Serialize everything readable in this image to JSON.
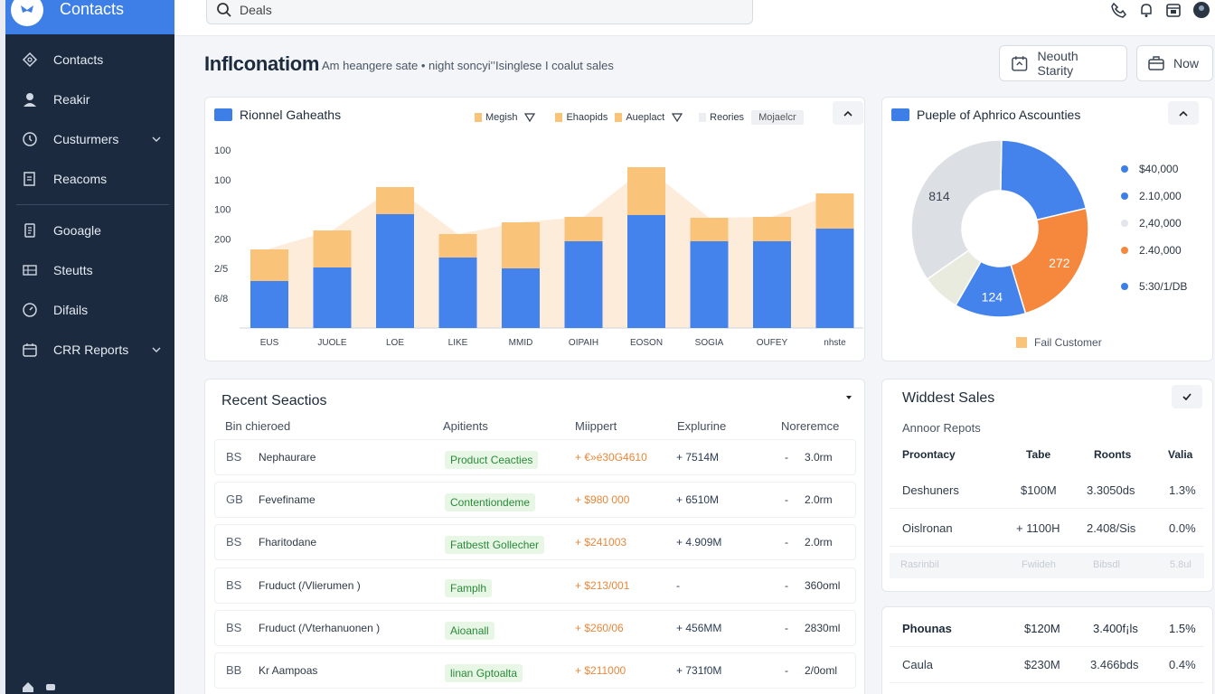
{
  "app": {
    "title": "Contacts"
  },
  "sidebar": {
    "items": [
      {
        "label": "Contacts",
        "icon": "contacts-icon"
      },
      {
        "label": "Reakir",
        "icon": "person-icon"
      },
      {
        "label": "Custurmers",
        "icon": "clock-icon",
        "expandable": true
      },
      {
        "label": "Reacoms",
        "icon": "document-icon"
      },
      {
        "label": "Gooagle",
        "icon": "file-icon"
      },
      {
        "label": "Steutts",
        "icon": "grid-icon"
      },
      {
        "label": "Difails",
        "icon": "gauge-icon"
      },
      {
        "label": "CRR Reports",
        "icon": "calendar-icon",
        "expandable": true
      }
    ]
  },
  "search": {
    "value": "Deals"
  },
  "header": {
    "title": "Inflconatiom",
    "subtitle": "Am heangere sate  •  night soncyi'’Isinglese  I  coalut sales",
    "btn_month": "Neouth Starity",
    "btn_now": "Now"
  },
  "bar_card": {
    "title": "Rionnel Gaheaths",
    "legend": [
      "Megish",
      "Ehaopids",
      "Aueplact",
      "Reories",
      "Mojaelcr"
    ]
  },
  "pie_card": {
    "title": "Pueple of Aphrico Ascounties",
    "legend": [
      "$40,000",
      "2.10,000",
      "2,40,000",
      "2.40,000",
      "5:30/1/DB"
    ],
    "foot": "Fail Customer"
  },
  "chart_data": [
    {
      "type": "bar",
      "stacked": true,
      "categories": [
        "EUS",
        "JUOLE",
        "LOE",
        "LIKE",
        "MMID",
        "OIPAIH",
        "EOSON",
        "SOGIA",
        "OUFEY",
        "nhste"
      ],
      "yticks": [
        "100",
        "100",
        "100",
        "200",
        "2/5",
        "6/8"
      ],
      "series": [
        {
          "color": "#4583ec",
          "values": [
            52,
            67,
            126,
            78,
            66,
            96,
            125,
            96,
            96,
            110
          ]
        },
        {
          "color": "#f9c37a",
          "values": [
            35,
            41,
            30,
            26,
            51,
            27,
            53,
            26,
            27,
            39
          ]
        }
      ],
      "area_values": [
        88,
        108,
        156,
        104,
        117,
        123,
        178,
        122,
        123,
        149
      ]
    },
    {
      "type": "pie",
      "donut": true,
      "slices": [
        {
          "label": "",
          "value": 21,
          "color": "#4583ec"
        },
        {
          "label": "272",
          "value": 24,
          "color": "#f5883d"
        },
        {
          "label": "124",
          "value": 13,
          "color": "#4583ec"
        },
        {
          "label": "",
          "value": 7,
          "color": "#e9ebdf"
        },
        {
          "label": "814",
          "value": 35,
          "color": "#dcdfe4"
        }
      ]
    }
  ],
  "recent": {
    "title": "Recent Seactios",
    "columns": [
      "Bin chieroed",
      "Apitients",
      "Miippert",
      "Explurine",
      "Noreremce"
    ],
    "rows": [
      {
        "code": "BS",
        "name": "Nephaurare",
        "tag": "Product Ceacties",
        "amount": "+ €»é30G4610",
        "change": "+  7514M",
        "dash": "-",
        "value": "3.0rm"
      },
      {
        "code": "GB",
        "name": "Fevefiname",
        "tag": "Contentiondeme",
        "amount": "+ $980 000",
        "change": "+  6510M",
        "dash": "-",
        "value": "2.0rm"
      },
      {
        "code": "BS",
        "name": "Fharitodane",
        "tag": "Fatbestt Gollecher",
        "amount": "+ $241003",
        "change": "+ 4.909M",
        "dash": "-",
        "value": "2.0rm"
      },
      {
        "code": "BS",
        "name": "Fruduct (/Vlierumen )",
        "tag": "Famplh",
        "amount": "+ $213/001",
        "change": "-",
        "dash": "-",
        "value": "360oml"
      },
      {
        "code": "BS",
        "name": "Fruduct (/Vterhanuonen )",
        "tag": "Aioanall",
        "amount": "+ $260/06",
        "change": "+  456MM",
        "dash": "-",
        "value": "2830ml"
      },
      {
        "code": "BB",
        "name": "Kr Aampoas",
        "tag": "linan Gptoalta",
        "amount": "+ $211000",
        "change": "+  731f0M",
        "dash": "-",
        "value": "2/0oml"
      }
    ]
  },
  "widdest": {
    "title": "Widdest Sales",
    "sub": "Annoor Repots",
    "columns": [
      "Proontacy",
      "Tabe",
      "Roonts",
      "Valia"
    ],
    "rows": [
      [
        "Deshuners",
        "$100M",
        "3.3050ds",
        "1.3%"
      ],
      [
        "Oislronan",
        "+ 1100H",
        "2.408/Sis",
        "0.0%"
      ],
      [
        "Rasrinbil",
        "Fwiideh",
        "Bibsdl",
        "5.8ul"
      ]
    ]
  },
  "phounas": {
    "rows": [
      [
        "Phounas",
        "$120M",
        "3.400f¡ls",
        "1.5%"
      ],
      [
        "Caula",
        "$230M",
        "3.466bds",
        "0.4%"
      ]
    ]
  }
}
